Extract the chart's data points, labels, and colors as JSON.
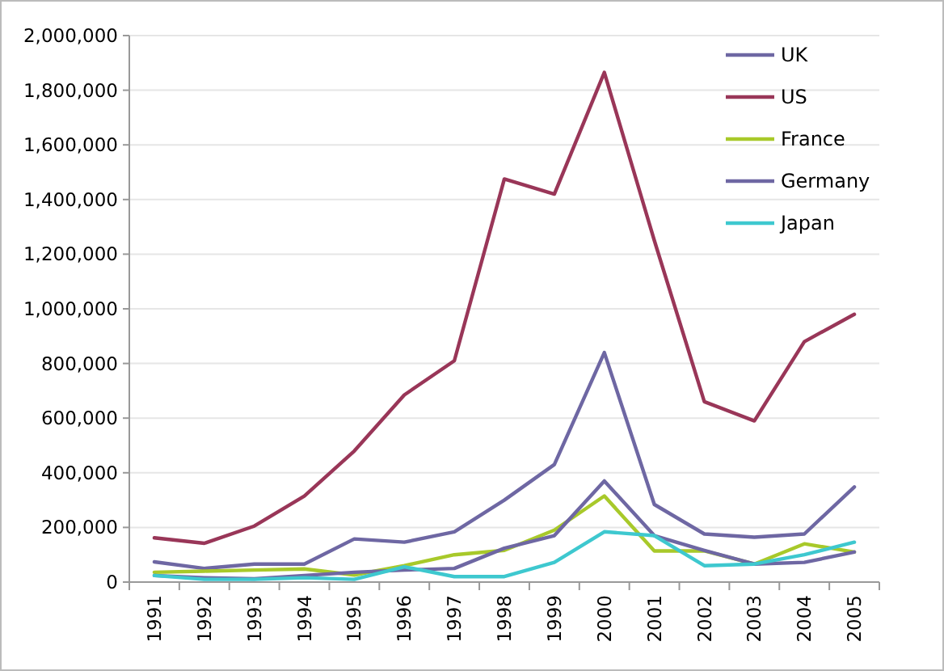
{
  "chart_data": {
    "type": "line",
    "categories": [
      "1991",
      "1992",
      "1993",
      "1994",
      "1995",
      "1996",
      "1997",
      "1998",
      "1999",
      "2000",
      "2001",
      "2002",
      "2003",
      "2004",
      "2005"
    ],
    "series": [
      {
        "name": "UK",
        "color": "#6e67a3",
        "values": [
          74000,
          50000,
          66000,
          66000,
          158000,
          146000,
          184000,
          300000,
          430000,
          840000,
          284000,
          176000,
          164000,
          176000,
          348000
        ]
      },
      {
        "name": "US",
        "color": "#993658",
        "values": [
          162000,
          142000,
          205000,
          315000,
          480000,
          685000,
          810000,
          1475000,
          1420000,
          1865000,
          1250000,
          660000,
          590000,
          880000,
          980000
        ]
      },
      {
        "name": "France",
        "color": "#a8c92a",
        "values": [
          36000,
          40000,
          44000,
          48000,
          26000,
          60000,
          100000,
          116000,
          190000,
          315000,
          114000,
          114000,
          66000,
          140000,
          110000
        ]
      },
      {
        "name": "Germany",
        "color": "#6e67a3",
        "values": [
          24000,
          16000,
          12000,
          24000,
          36000,
          44000,
          50000,
          124000,
          170000,
          370000,
          170000,
          116000,
          66000,
          72000,
          110000
        ]
      },
      {
        "name": "Japan",
        "color": "#3ec8cf",
        "values": [
          24000,
          10000,
          10000,
          16000,
          10000,
          56000,
          20000,
          20000,
          72000,
          184000,
          170000,
          60000,
          66000,
          100000,
          146000
        ]
      }
    ],
    "ylim": [
      0,
      2000000
    ],
    "yticks": [
      0,
      {
        "value": 200000,
        "label": "200,000"
      },
      {
        "value": 400000,
        "label": "400,000"
      },
      {
        "value": 600000,
        "label": "600,000"
      },
      {
        "value": 800000,
        "label": "800,000"
      },
      {
        "value": 1000000,
        "label": "1,000,000"
      },
      {
        "value": 1200000,
        "label": "1,200,000"
      },
      {
        "value": 1400000,
        "label": "1,400,000"
      },
      {
        "value": 1600000,
        "label": "1,600,000"
      },
      {
        "value": 1800000,
        "label": "1,800,000"
      },
      {
        "value": 2000000,
        "label": "2,000,000"
      }
    ],
    "grid": "y",
    "legend": "top right",
    "marker": "none",
    "line_style": "solid"
  }
}
